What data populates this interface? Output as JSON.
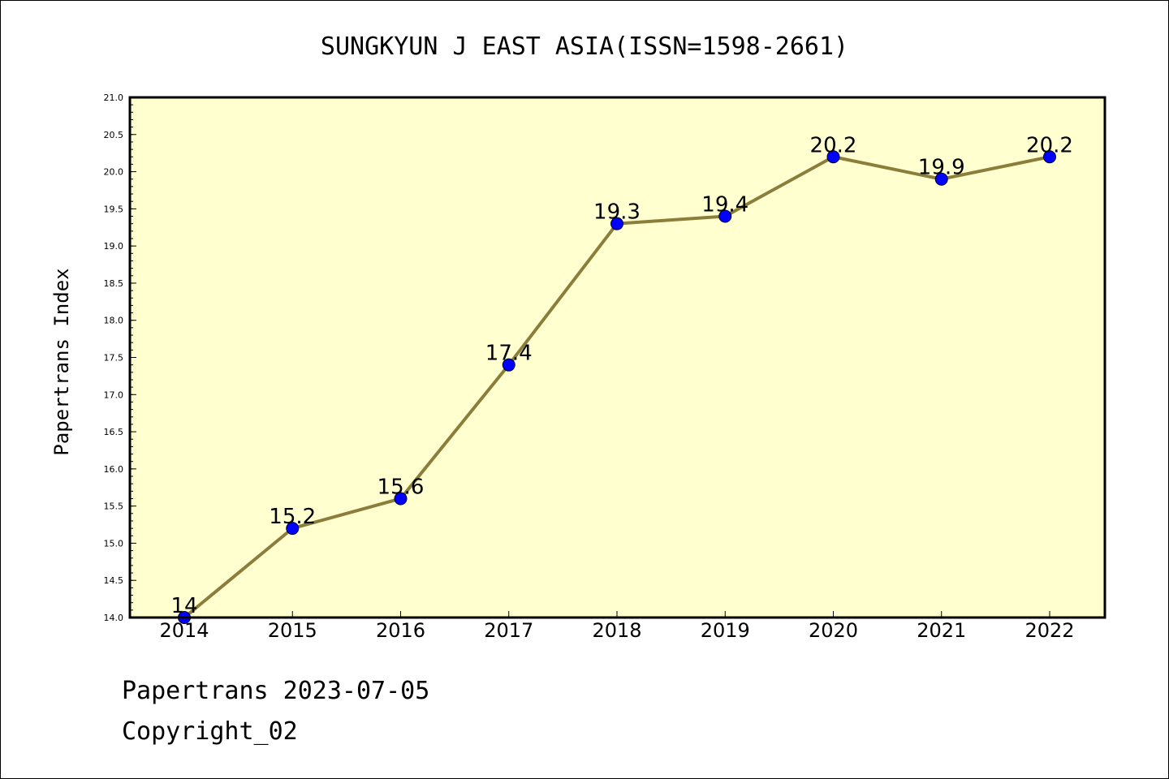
{
  "chart_data": {
    "type": "line",
    "title": "SUNGKYUN J EAST ASIA(ISSN=1598-2661)",
    "xlabel": "",
    "ylabel": "Papertrans Index",
    "categories": [
      "2014",
      "2015",
      "2016",
      "2017",
      "2018",
      "2019",
      "2020",
      "2021",
      "2022"
    ],
    "series": [
      {
        "values": [
          14,
          15.2,
          15.6,
          17.4,
          19.3,
          19.4,
          20.2,
          19.9,
          20.2
        ],
        "data_labels": [
          "14",
          "15.2",
          "15.6",
          "17.4",
          "19.3",
          "19.4",
          "20.2",
          "19.9",
          "20.2"
        ],
        "line_color": "#8b7d3a",
        "marker_color": "#0000ff"
      }
    ],
    "ylim": [
      14.0,
      21.0
    ],
    "yticks": [
      "14.0",
      "14.5",
      "15.0",
      "15.5",
      "16.0",
      "16.5",
      "17.0",
      "17.5",
      "18.0",
      "18.5",
      "19.0",
      "19.5",
      "20.0",
      "20.5",
      "21.0"
    ],
    "grid": false,
    "plot_background": "#ffffd0"
  },
  "footer": {
    "line1": "Papertrans 2023-07-05",
    "line2": "Copyright_02"
  }
}
